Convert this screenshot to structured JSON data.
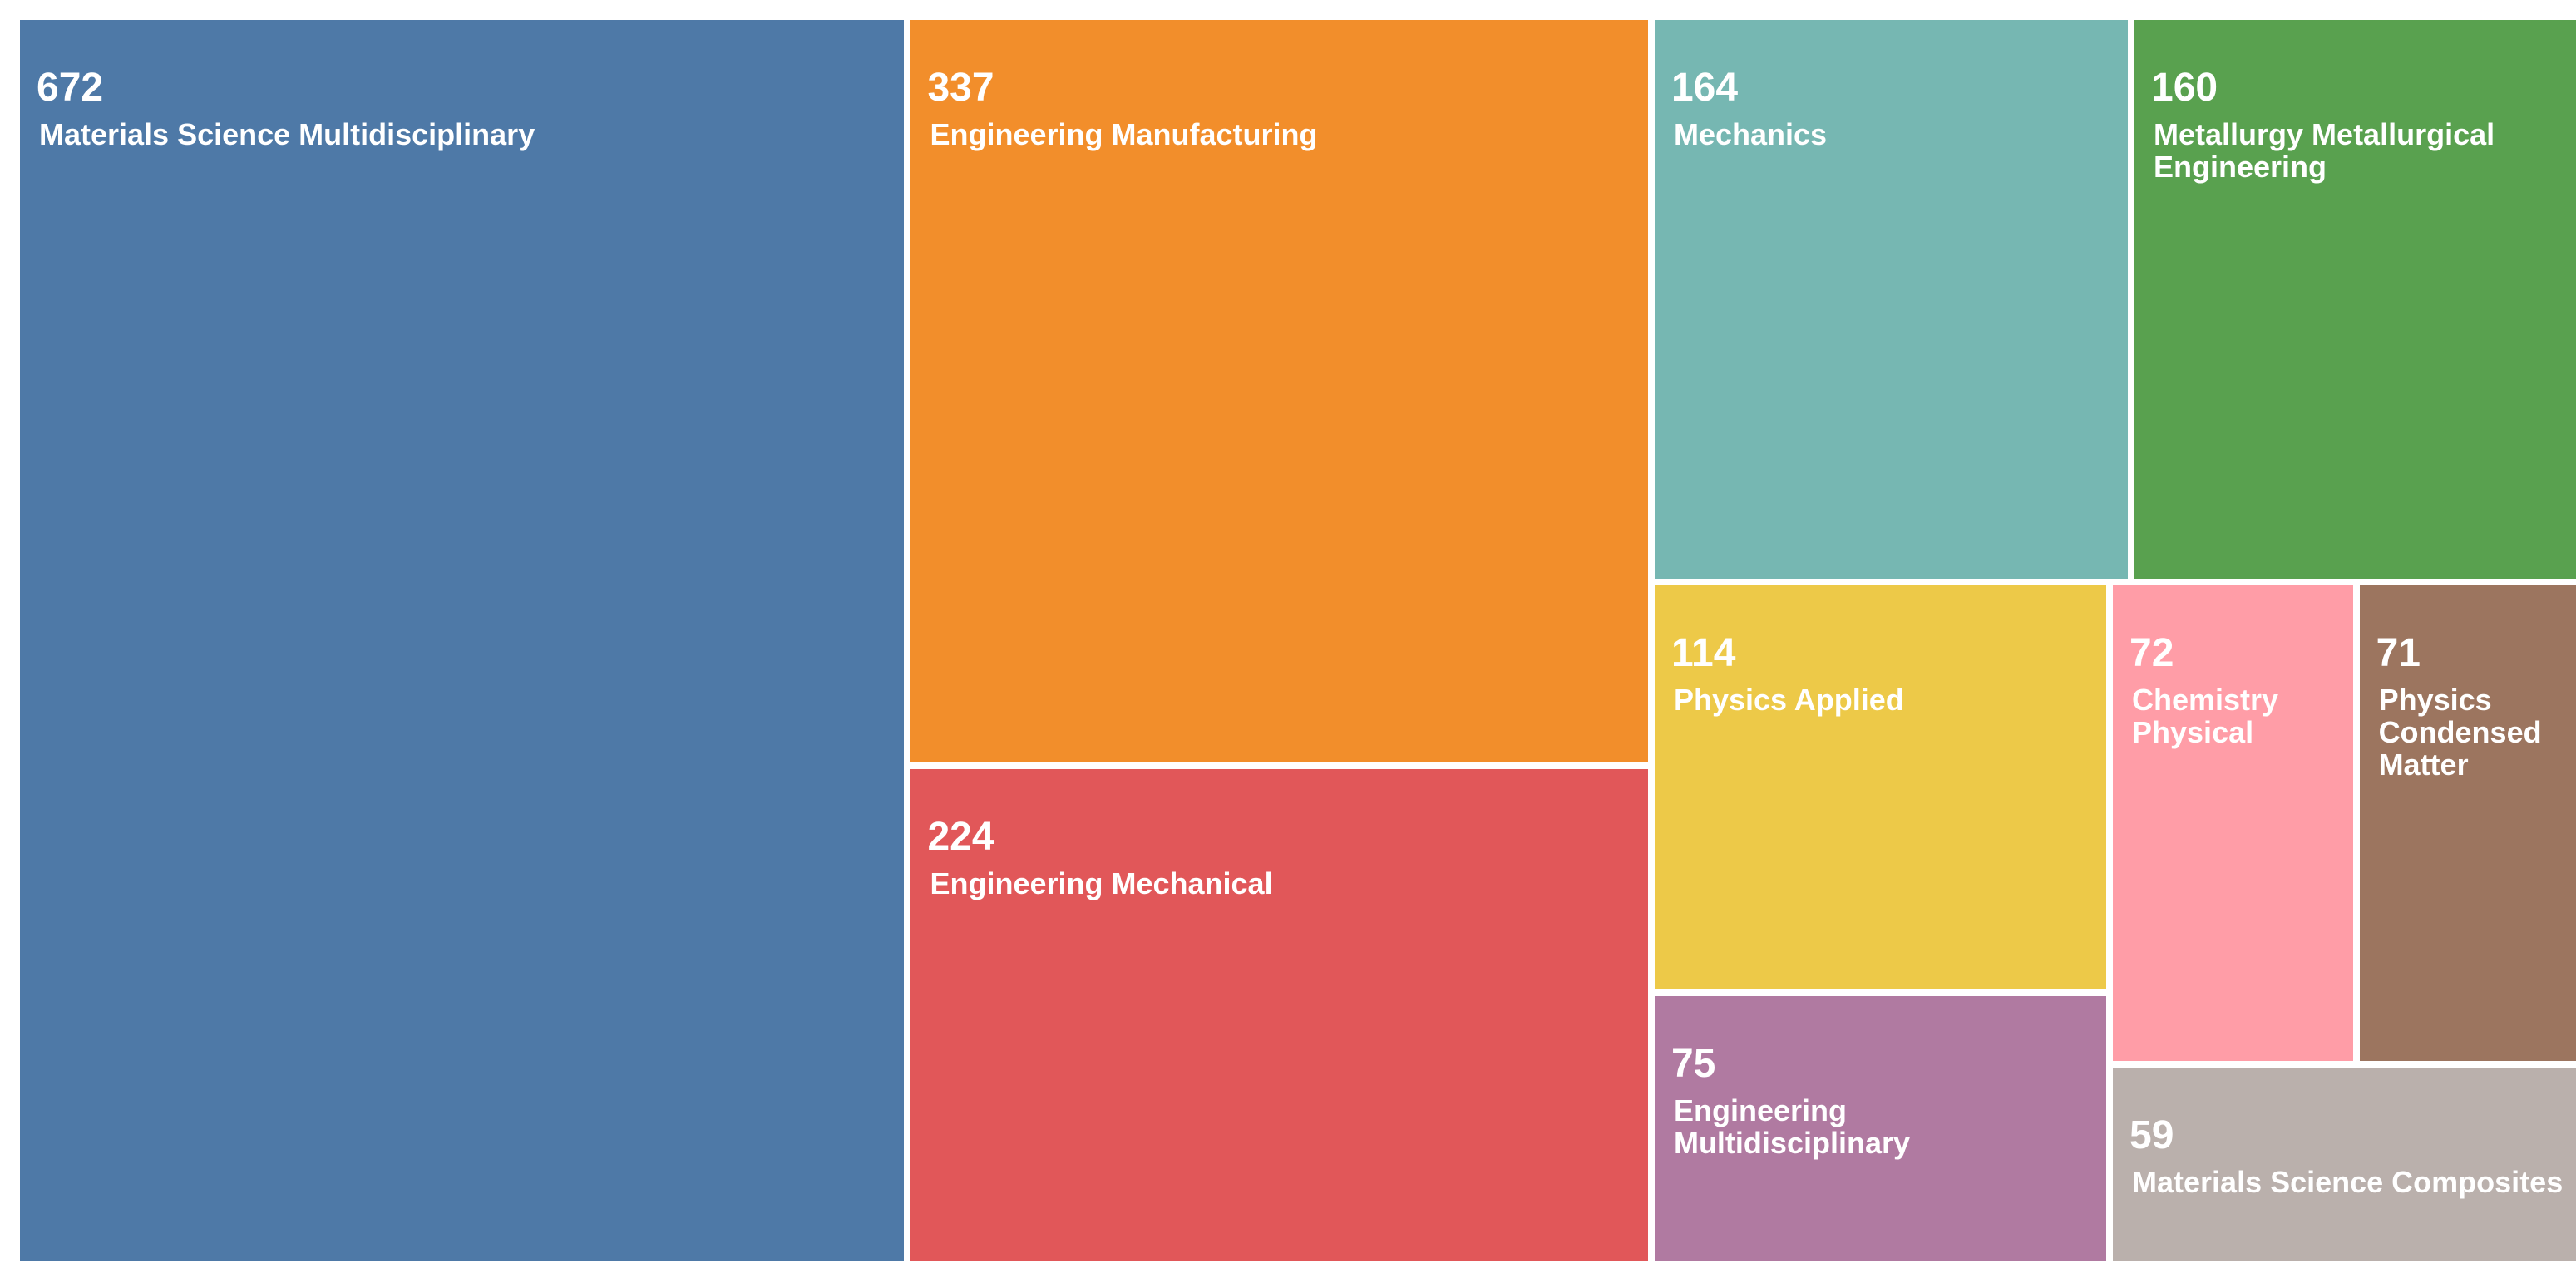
{
  "chart_data": {
    "type": "treemap",
    "title": "",
    "items": [
      {
        "label": "Materials Science Multidisciplinary",
        "value": 672,
        "color": "#4e79a7"
      },
      {
        "label": "Engineering Manufacturing",
        "value": 337,
        "color": "#f28e2b"
      },
      {
        "label": "Engineering Mechanical",
        "value": 224,
        "color": "#e15759"
      },
      {
        "label": "Mechanics",
        "value": 164,
        "color": "#76b7b2"
      },
      {
        "label": "Metallurgy Metallurgical Engineering",
        "value": 160,
        "color": "#59a14f"
      },
      {
        "label": "Physics Applied",
        "value": 114,
        "color": "#edc948"
      },
      {
        "label": "Engineering\nMultidisciplinary",
        "value": 75,
        "color": "#b07aa1"
      },
      {
        "label": "Chemistry\nPhysical",
        "value": 72,
        "color": "#ff9da7"
      },
      {
        "label": "Physics\nCondensed\nMatter",
        "value": 71,
        "color": "#9c755f"
      },
      {
        "label": "Materials Science Composites",
        "value": 59,
        "color": "#bab0ac"
      }
    ]
  }
}
